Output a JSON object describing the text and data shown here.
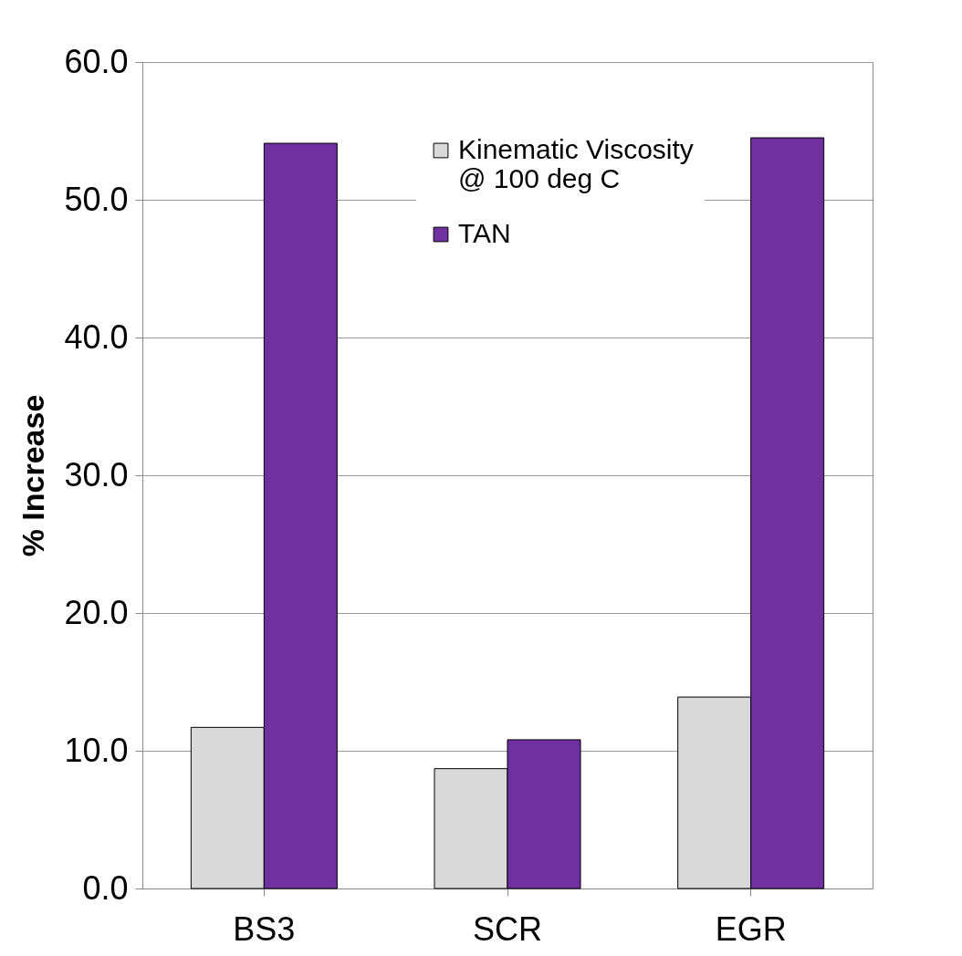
{
  "chart_data": {
    "type": "bar",
    "ylabel": "% Increase",
    "categories": [
      "BS3",
      "SCR",
      "EGR"
    ],
    "series": [
      {
        "name": "Kinematic Viscosity @ 100 deg C",
        "color": "#d9d9d9",
        "values": [
          11.7,
          8.7,
          13.9
        ]
      },
      {
        "name": "TAN",
        "color": "#7030a0",
        "values": [
          54.1,
          10.8,
          54.5
        ]
      }
    ],
    "ylim": [
      0,
      60
    ],
    "yticks": [
      {
        "value": 0,
        "label": "0.0"
      },
      {
        "value": 10,
        "label": "10.0"
      },
      {
        "value": 20,
        "label": "20.0"
      },
      {
        "value": 30,
        "label": "30.0"
      },
      {
        "value": 40,
        "label": "40.0"
      },
      {
        "value": 50,
        "label": "50.0"
      },
      {
        "value": 60,
        "label": "60.0"
      }
    ],
    "grid": "y",
    "legend": "top right"
  }
}
